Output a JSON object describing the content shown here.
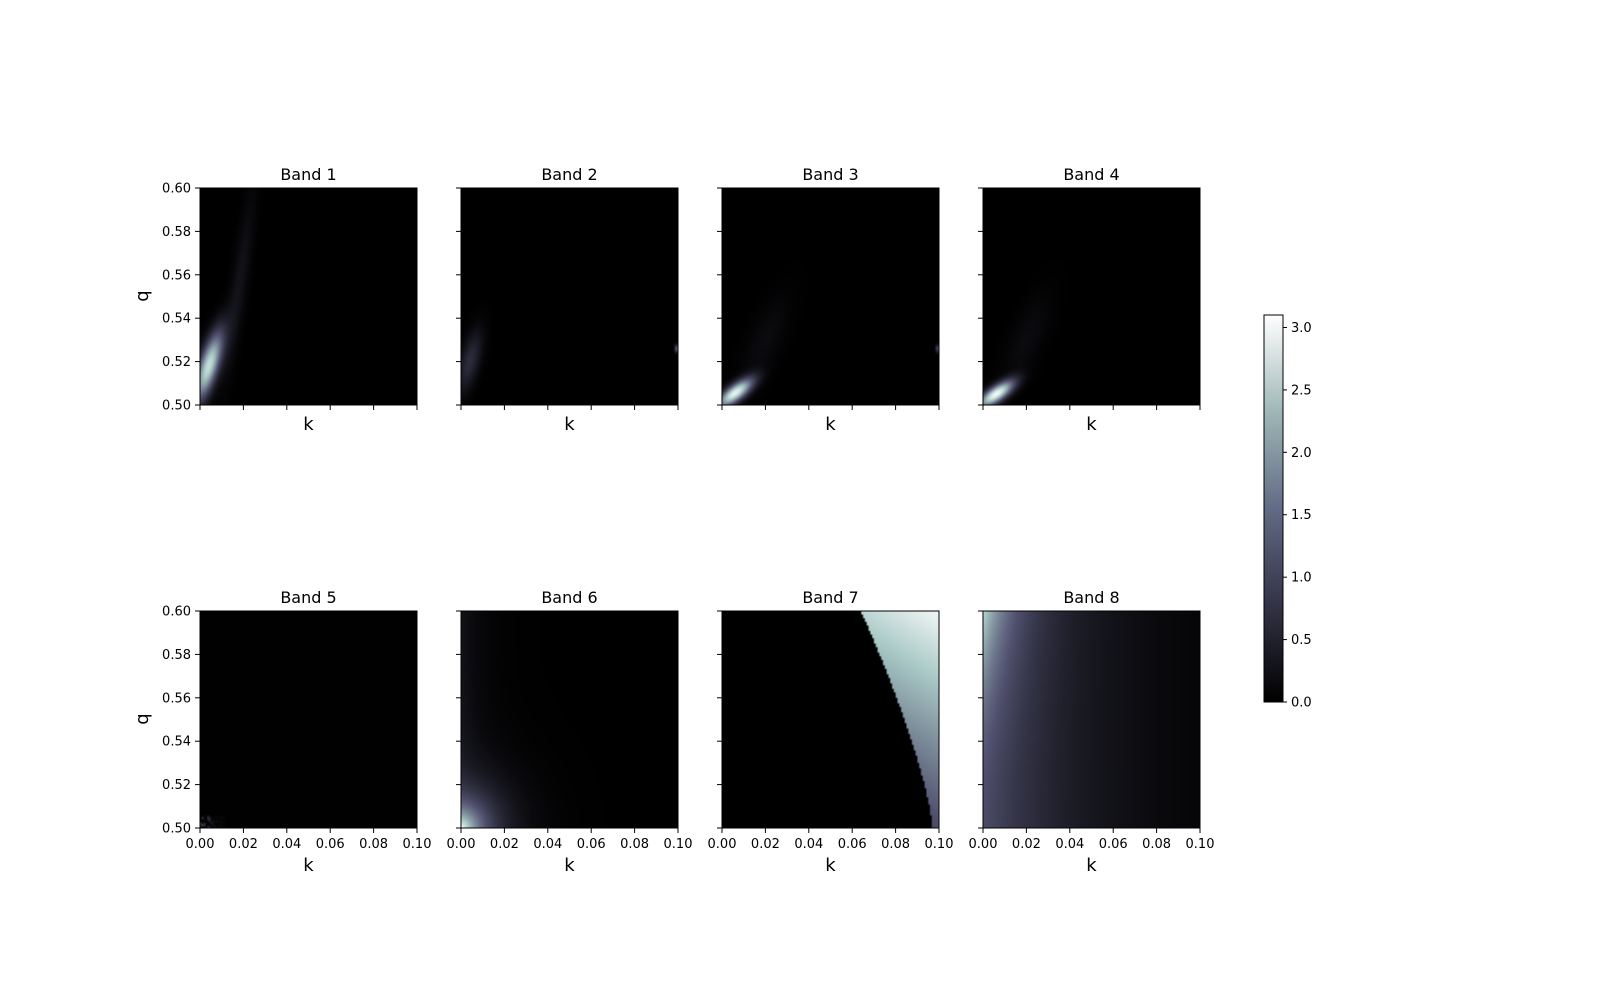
{
  "chart_data": {
    "type": "heatmap",
    "layout": "2 rows x 4 columns of panels sharing axes, with one shared colorbar at right",
    "colormap": "bone",
    "xlabel": "k",
    "ylabel": "q",
    "xlim": [
      0.0,
      0.1
    ],
    "ylim": [
      0.5,
      0.6
    ],
    "x_ticks": [
      0.0,
      0.02,
      0.04,
      0.06,
      0.08,
      0.1
    ],
    "x_tick_labels": [
      "0.00",
      "0.02",
      "0.04",
      "0.06",
      "0.08",
      "0.10"
    ],
    "y_ticks": [
      0.5,
      0.52,
      0.54,
      0.56,
      0.58,
      0.6
    ],
    "y_tick_labels": [
      "0.50",
      "0.52",
      "0.54",
      "0.56",
      "0.58",
      "0.60"
    ],
    "colorbar": {
      "range": [
        0.0,
        3.1
      ],
      "ticks": [
        0.0,
        0.5,
        1.0,
        1.5,
        2.0,
        2.5,
        3.0
      ],
      "tick_labels": [
        "0.0",
        "0.5",
        "1.0",
        "1.5",
        "2.0",
        "2.5",
        "3.0"
      ]
    },
    "panels": [
      {
        "title": "Band 1",
        "description": "bright elongated blob near k=0.004, q=0.518 (value ~2.5) with faint streak extending to k~0.03, q~0.59"
      },
      {
        "title": "Band 2",
        "description": "mostly ~0; faint glow near k~0.005, q~0.52 (value ~0.5); tiny speck near k=0.099, q=0.526"
      },
      {
        "title": "Band 3",
        "description": "bright blob near k=0.006, q=0.505 (value ~2.8); tiny speck near k=0.099, q=0.526"
      },
      {
        "title": "Band 4",
        "description": "bright blob near k=0.006, q=0.505 (value ~2.9)"
      },
      {
        "title": "Band 5",
        "description": "nearly 0 everywhere; small noisy speckle patch near k<0.012, q<0.506"
      },
      {
        "title": "Band 6",
        "description": "bright corner near k=0, q=0.5 (value ~2.8) decaying with distance; faint glow along k=0 edge"
      },
      {
        "title": "Band 7",
        "description": "0 inside curved boundary; values 1.0–2.5 beyond boundary from k~0.064 at q=0.6 to k~0.097 at q=0.5, brightest at top-right"
      },
      {
        "title": "Band 8",
        "description": "smooth field: ~2.5 at k=0, q=0.6; ~1.0 along left edge; decreasing toward ~0.05 at k=0.1"
      }
    ]
  }
}
